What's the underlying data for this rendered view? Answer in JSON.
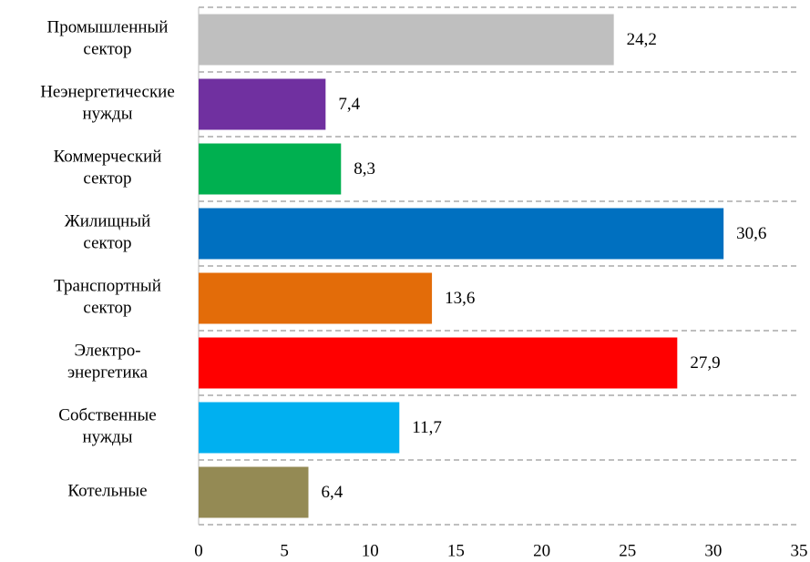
{
  "chart_data": {
    "type": "hbar",
    "categories": [
      [
        "Промышленный",
        "сектор"
      ],
      [
        "Неэнергетические",
        "нужды"
      ],
      [
        "Коммерческий",
        "сектор"
      ],
      [
        "Жилищный",
        "сектор"
      ],
      [
        "Транспортный",
        "сектор"
      ],
      [
        "Электро-",
        "энергетика"
      ],
      [
        "Собственные",
        "нужды"
      ],
      [
        "Котельные"
      ]
    ],
    "values": [
      24.2,
      7.4,
      8.3,
      30.6,
      13.6,
      27.9,
      11.7,
      6.4
    ],
    "value_labels": [
      "24,2",
      "7,4",
      "8,3",
      "30,6",
      "13,6",
      "27,9",
      "11,7",
      "6,4"
    ],
    "colors": [
      "#bfbfbf",
      "#7030a0",
      "#00b050",
      "#0070c0",
      "#e36c09",
      "#ff0000",
      "#00b0f0",
      "#948a54"
    ],
    "xlim": [
      0,
      35
    ],
    "xticks": [
      0,
      5,
      10,
      15,
      20,
      25,
      30,
      35
    ]
  }
}
